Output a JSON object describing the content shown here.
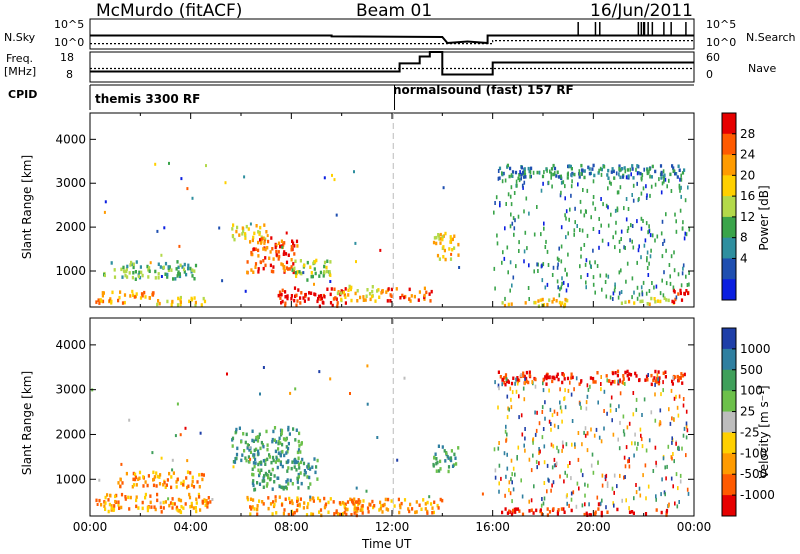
{
  "header": {
    "radar": "McMurdo (fitACF)",
    "beam": "Beam 01",
    "date": "16/Jun/2011"
  },
  "status_strip": {
    "left_label_top": "N.Sky",
    "left_label_top2": "Freq.",
    "left_label_unit": "[MHz]",
    "left_label_cpid": "CPID",
    "right_label_top": "N.Search",
    "right_label_bottom": "Nave",
    "noise_ticks_left": [
      "10^5",
      "10^0"
    ],
    "noise_ticks_right": [
      "10^5",
      "10^0"
    ],
    "freq_ticks": [
      "18",
      "8"
    ],
    "nave_ticks": [
      "60",
      "0"
    ],
    "cpid_segments": [
      "themis 3300 RF",
      "normalsound (fast) 157 RF"
    ]
  },
  "chart_data": [
    {
      "type": "heatmap",
      "panel": "power",
      "ylabel": "Slant Range [km]",
      "xlabel": "Time UT",
      "x_ticks": [
        "00:00",
        "04:00",
        "08:00",
        "12:00",
        "16:00",
        "20:00",
        "00:00"
      ],
      "y_ticks": [
        "1000",
        "2000",
        "3000",
        "4000"
      ],
      "ylim": [
        180,
        4600
      ],
      "xlim_hours": [
        0,
        24
      ],
      "colorbar_label": "Power [dB]",
      "colorbar_ticks": [
        "28",
        "24",
        "20",
        "16",
        "12",
        "8",
        "4"
      ],
      "colorbar_colors": [
        "#e60000",
        "#ff5a00",
        "#ff9b00",
        "#ffd000",
        "#b3d94a",
        "#3aa44a",
        "#2f8f9f",
        "#1f4fb0",
        "#0b1fe0"
      ],
      "blobs": [
        {
          "t0": 0.5,
          "t1": 4.2,
          "r0": 850,
          "r1": 1250,
          "level": 3
        },
        {
          "t0": 0.2,
          "t1": 2.5,
          "r0": 300,
          "r1": 600,
          "level": 6
        },
        {
          "t0": 2.6,
          "t1": 4.6,
          "r0": 250,
          "r1": 450,
          "level": 5
        },
        {
          "t0": 5.6,
          "t1": 7.0,
          "r0": 1700,
          "r1": 2100,
          "level": 5
        },
        {
          "t0": 6.2,
          "t1": 8.2,
          "r0": 1000,
          "r1": 1800,
          "level": 7
        },
        {
          "t0": 7.4,
          "t1": 10.2,
          "r0": 230,
          "r1": 650,
          "level": 8
        },
        {
          "t0": 8.0,
          "t1": 9.6,
          "r0": 800,
          "r1": 1300,
          "level": 4
        },
        {
          "t0": 9.8,
          "t1": 11.5,
          "r0": 350,
          "r1": 700,
          "level": 5
        },
        {
          "t0": 11.5,
          "t1": 13.6,
          "r0": 350,
          "r1": 650,
          "level": 7
        },
        {
          "t0": 13.6,
          "t1": 14.6,
          "r0": 1300,
          "r1": 1900,
          "level": 5
        },
        {
          "t0": 16.2,
          "t1": 23.6,
          "r0": 3150,
          "r1": 3450,
          "level": 2
        },
        {
          "t0": 16.3,
          "t1": 19.2,
          "r0": 230,
          "r1": 400,
          "level": 5
        },
        {
          "t0": 21.0,
          "t1": 23.2,
          "r0": 280,
          "r1": 420,
          "level": 5
        },
        {
          "t0": 23.1,
          "t1": 23.8,
          "r0": 300,
          "r1": 650,
          "level": 8
        }
      ]
    },
    {
      "type": "heatmap",
      "panel": "velocity",
      "ylabel": "Slant Range [km]",
      "xlabel": "Time UT",
      "x_ticks": [
        "00:00",
        "04:00",
        "08:00",
        "12:00",
        "16:00",
        "20:00",
        "00:00"
      ],
      "y_ticks": [
        "1000",
        "2000",
        "3000",
        "4000"
      ],
      "ylim": [
        180,
        4600
      ],
      "xlim_hours": [
        0,
        24
      ],
      "colorbar_label": "Velocity [m s⁻¹]",
      "colorbar_ticks": [
        "1000",
        "500",
        "100",
        "25",
        "-25",
        "-100",
        "-500",
        "-1000"
      ],
      "colorbar_colors": [
        "#1f3fa8",
        "#2f7fa0",
        "#3f9f5a",
        "#6cc04a",
        "#bdbdbd",
        "#ffd000",
        "#ff9b00",
        "#ff5a00",
        "#e60000"
      ],
      "blobs": [
        {
          "t0": 0.2,
          "t1": 4.8,
          "r0": 300,
          "r1": 700,
          "level": 6
        },
        {
          "t0": 1.0,
          "t1": 4.5,
          "r0": 850,
          "r1": 1200,
          "level": 6
        },
        {
          "t0": 5.6,
          "t1": 8.4,
          "r0": 1400,
          "r1": 2200,
          "level": 2
        },
        {
          "t0": 6.4,
          "t1": 9.0,
          "r0": 800,
          "r1": 1500,
          "level": 2
        },
        {
          "t0": 6.2,
          "t1": 10.8,
          "r0": 230,
          "r1": 650,
          "level": 6
        },
        {
          "t0": 10.0,
          "t1": 14.0,
          "r0": 280,
          "r1": 600,
          "level": 6
        },
        {
          "t0": 13.6,
          "t1": 14.6,
          "r0": 1200,
          "r1": 1800,
          "level": 2
        },
        {
          "t0": 16.2,
          "t1": 23.6,
          "r0": 3150,
          "r1": 3450,
          "level": 8
        },
        {
          "t0": 16.3,
          "t1": 23.0,
          "r0": 230,
          "r1": 380,
          "level": 8
        }
      ]
    }
  ],
  "line_traces": {
    "n_sky": [
      [
        0,
        0.45
      ],
      [
        9.6,
        0.45
      ],
      [
        9.6,
        0.42
      ],
      [
        14.0,
        0.4
      ],
      [
        14.2,
        0.2
      ],
      [
        15.0,
        0.25
      ],
      [
        15.8,
        0.2
      ],
      [
        15.8,
        0.45
      ],
      [
        24,
        0.45
      ]
    ],
    "n_search": [
      [
        0,
        0.18
      ],
      [
        16,
        0.18
      ],
      [
        16,
        0.28
      ],
      [
        24,
        0.28
      ]
    ],
    "freq": [
      [
        0,
        0.35
      ],
      [
        12.3,
        0.35
      ],
      [
        12.3,
        0.62
      ],
      [
        13.1,
        0.62
      ],
      [
        13.1,
        0.85
      ],
      [
        13.5,
        0.85
      ],
      [
        13.5,
        1.0
      ],
      [
        14.0,
        1.0
      ],
      [
        14.0,
        0.25
      ],
      [
        16.0,
        0.25
      ],
      [
        16.0,
        0.65
      ],
      [
        24,
        0.65
      ]
    ],
    "nave": [
      [
        0,
        0.45
      ],
      [
        24,
        0.45
      ]
    ]
  }
}
